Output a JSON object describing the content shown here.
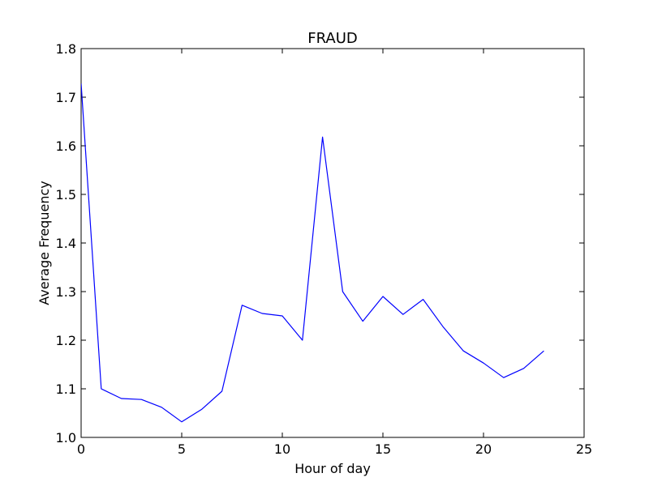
{
  "chart_data": {
    "type": "line",
    "title": "FRAUD",
    "xlabel": "Hour of day",
    "ylabel": "Average Frequency",
    "xlim": [
      0,
      25
    ],
    "ylim": [
      1.0,
      1.8
    ],
    "xticks": [
      0,
      5,
      10,
      15,
      20,
      25
    ],
    "yticks": [
      1.0,
      1.1,
      1.2,
      1.3,
      1.4,
      1.5,
      1.6,
      1.7,
      1.8
    ],
    "xtick_labels": [
      "0",
      "5",
      "10",
      "15",
      "20",
      "25"
    ],
    "ytick_labels": [
      "1.0",
      "1.1",
      "1.2",
      "1.3",
      "1.4",
      "1.5",
      "1.6",
      "1.7",
      "1.8"
    ],
    "grid": false,
    "series": [
      {
        "color": "#0000ff",
        "x": [
          0,
          1,
          2,
          3,
          4,
          5,
          6,
          7,
          8,
          9,
          10,
          11,
          12,
          13,
          14,
          15,
          16,
          17,
          18,
          19,
          20,
          21,
          22,
          23
        ],
        "y": [
          1.728,
          1.1,
          1.08,
          1.078,
          1.062,
          1.032,
          1.058,
          1.095,
          1.272,
          1.255,
          1.25,
          1.2,
          1.618,
          1.3,
          1.239,
          1.29,
          1.253,
          1.284,
          1.227,
          1.178,
          1.153,
          1.123,
          1.142,
          1.178
        ]
      }
    ]
  }
}
